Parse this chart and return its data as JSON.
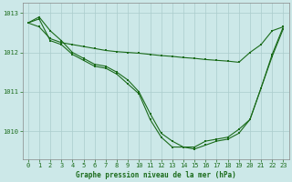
{
  "background_color": "#cce8e8",
  "grid_color": "#aacccc",
  "line_color": "#1a6b1a",
  "title": "Graphe pression niveau de la mer (hPa)",
  "xlim": [
    -0.5,
    23.5
  ],
  "ylim": [
    1009.3,
    1013.25
  ],
  "yticks": [
    1010,
    1011,
    1012,
    1013
  ],
  "xticks": [
    0,
    1,
    2,
    3,
    4,
    5,
    6,
    7,
    8,
    9,
    10,
    11,
    12,
    13,
    14,
    15,
    16,
    17,
    18,
    19,
    20,
    21,
    22,
    23
  ],
  "series_steep": [
    1012.75,
    1012.9,
    1012.55,
    1012.3,
    1012.0,
    1011.85,
    1011.7,
    1011.65,
    1011.5,
    1011.3,
    1011.0,
    1010.45,
    1009.95,
    1009.75,
    1009.6,
    1009.6,
    1009.75,
    1009.8,
    1009.85,
    1010.05,
    1010.3,
    1011.1,
    1011.95,
    1012.65
  ],
  "series_mid": [
    1012.75,
    1012.85,
    1012.3,
    1012.2,
    1011.95,
    1011.8,
    1011.65,
    1011.6,
    1011.45,
    1011.2,
    1010.95,
    1010.3,
    1009.85,
    1009.6,
    1009.6,
    1009.55,
    1009.65,
    1009.75,
    1009.8,
    1009.95,
    1010.3,
    1011.1,
    1011.9,
    1012.6
  ],
  "series_flat": [
    1012.75,
    1012.65,
    1012.35,
    1012.25,
    1012.2,
    1012.15,
    1012.1,
    1012.05,
    1012.02,
    1012.0,
    1011.98,
    1011.95,
    1011.92,
    1011.9,
    1011.87,
    1011.85,
    1011.82,
    1011.8,
    1011.78,
    1011.75,
    1012.0,
    1012.2,
    1012.55,
    1012.65
  ]
}
